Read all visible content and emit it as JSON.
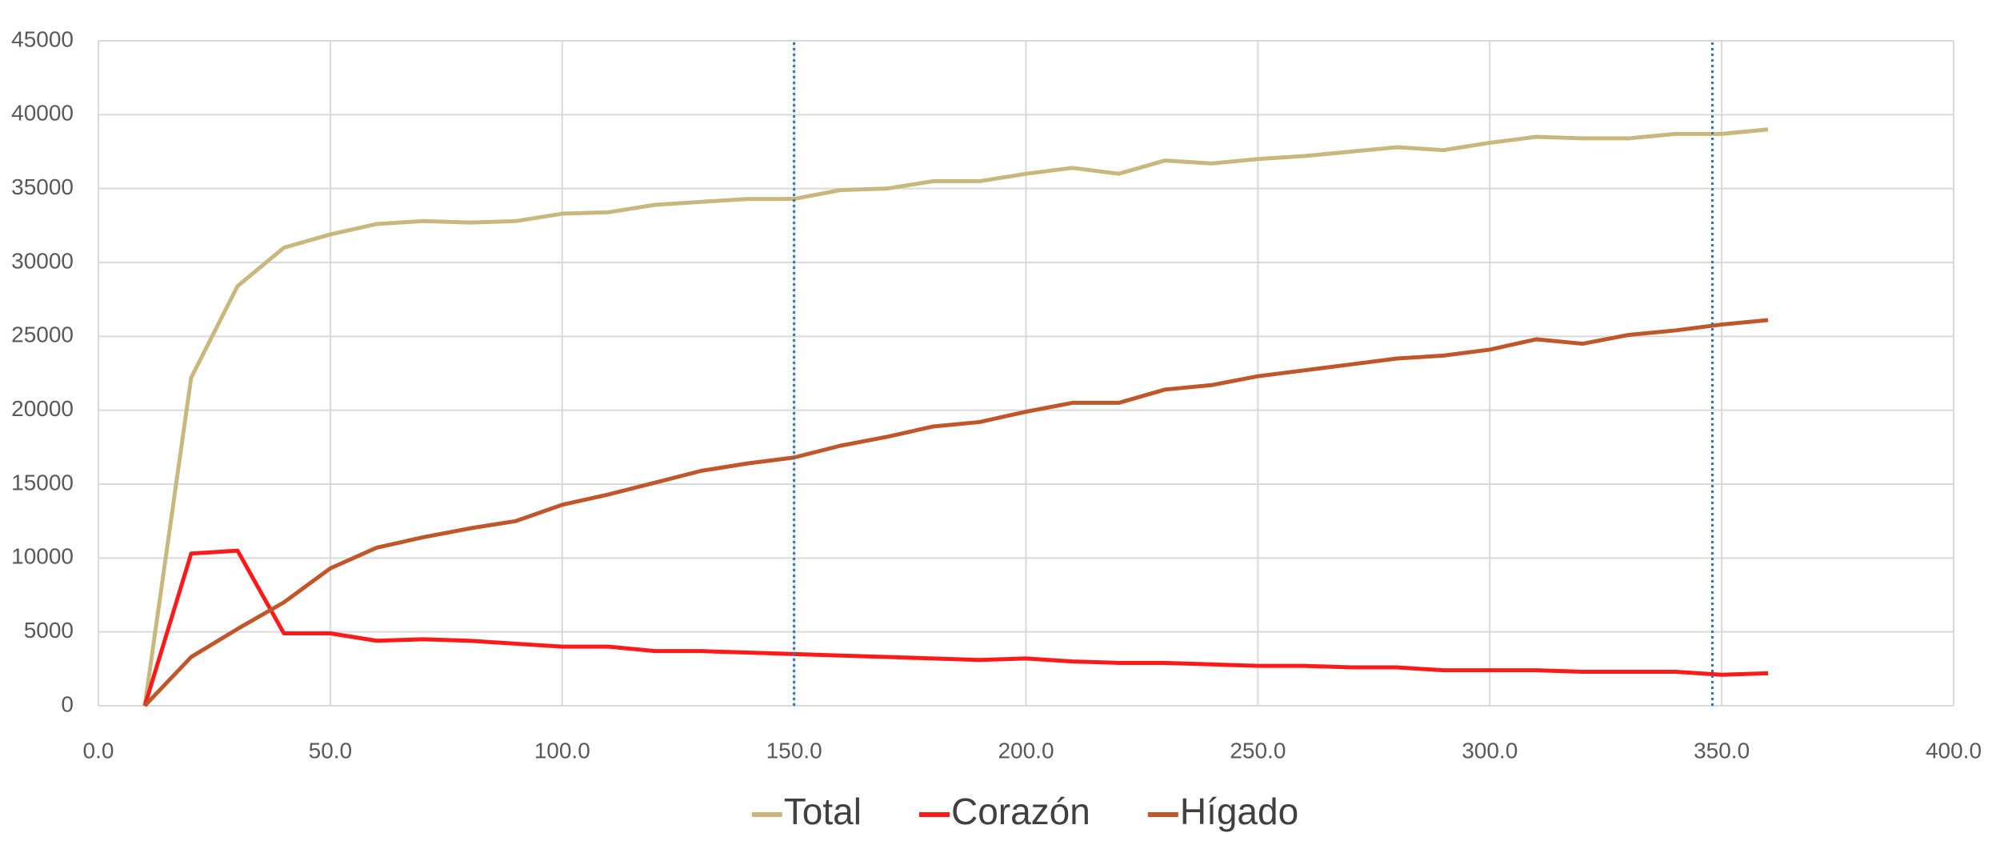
{
  "chart_data": {
    "type": "line",
    "x": [
      10,
      20,
      30,
      40,
      50,
      60,
      70,
      80,
      90,
      100,
      110,
      120,
      130,
      140,
      150,
      160,
      170,
      180,
      190,
      200,
      210,
      220,
      230,
      240,
      250,
      260,
      270,
      280,
      290,
      300,
      310,
      320,
      330,
      340,
      350,
      360
    ],
    "series": [
      {
        "name": "Total",
        "color": "#c8b87e",
        "values": [
          0,
          22200,
          28400,
          31000,
          31900,
          32600,
          32800,
          32700,
          32800,
          33300,
          33400,
          33900,
          34100,
          34300,
          34300,
          34900,
          35000,
          35500,
          35500,
          36000,
          36400,
          36000,
          36900,
          36700,
          37000,
          37200,
          37500,
          37800,
          37600,
          38100,
          38500,
          38400,
          38400,
          38700,
          38700,
          39000
        ]
      },
      {
        "name": "Corazón",
        "color": "#ff1a1a",
        "values": [
          0,
          10300,
          10500,
          4900,
          4900,
          4400,
          4500,
          4400,
          4200,
          4000,
          4000,
          3700,
          3700,
          3600,
          3500,
          3400,
          3300,
          3200,
          3100,
          3200,
          3000,
          2900,
          2900,
          2800,
          2700,
          2700,
          2600,
          2600,
          2400,
          2400,
          2400,
          2300,
          2300,
          2300,
          2100,
          2200
        ]
      },
      {
        "name": "Hígado",
        "color": "#c0572b",
        "values": [
          0,
          3300,
          5200,
          7000,
          9300,
          10700,
          11400,
          12000,
          12500,
          13600,
          14300,
          15100,
          15900,
          16400,
          16800,
          17600,
          18200,
          18900,
          19200,
          19900,
          20500,
          20500,
          21400,
          21700,
          22300,
          22700,
          23100,
          23500,
          23700,
          24100,
          24800,
          24500,
          25100,
          25400,
          25800,
          26100
        ]
      }
    ],
    "xlim": [
      0,
      400
    ],
    "xticks": [
      {
        "value": 0,
        "label": "0.0"
      },
      {
        "value": 50,
        "label": "50.0"
      },
      {
        "value": 100,
        "label": "100.0"
      },
      {
        "value": 150,
        "label": "150.0"
      },
      {
        "value": 200,
        "label": "200.0"
      },
      {
        "value": 250,
        "label": "250.0"
      },
      {
        "value": 300,
        "label": "300.0"
      },
      {
        "value": 350,
        "label": "350.0"
      },
      {
        "value": 400,
        "label": "400.0"
      }
    ],
    "ylim": [
      0,
      45000
    ],
    "yticks": [
      0,
      5000,
      10000,
      15000,
      20000,
      25000,
      30000,
      35000,
      40000,
      45000
    ],
    "grid": true,
    "legend": "bottom",
    "vlines": [
      150,
      348
    ],
    "vline_color": "#2e75b6"
  }
}
